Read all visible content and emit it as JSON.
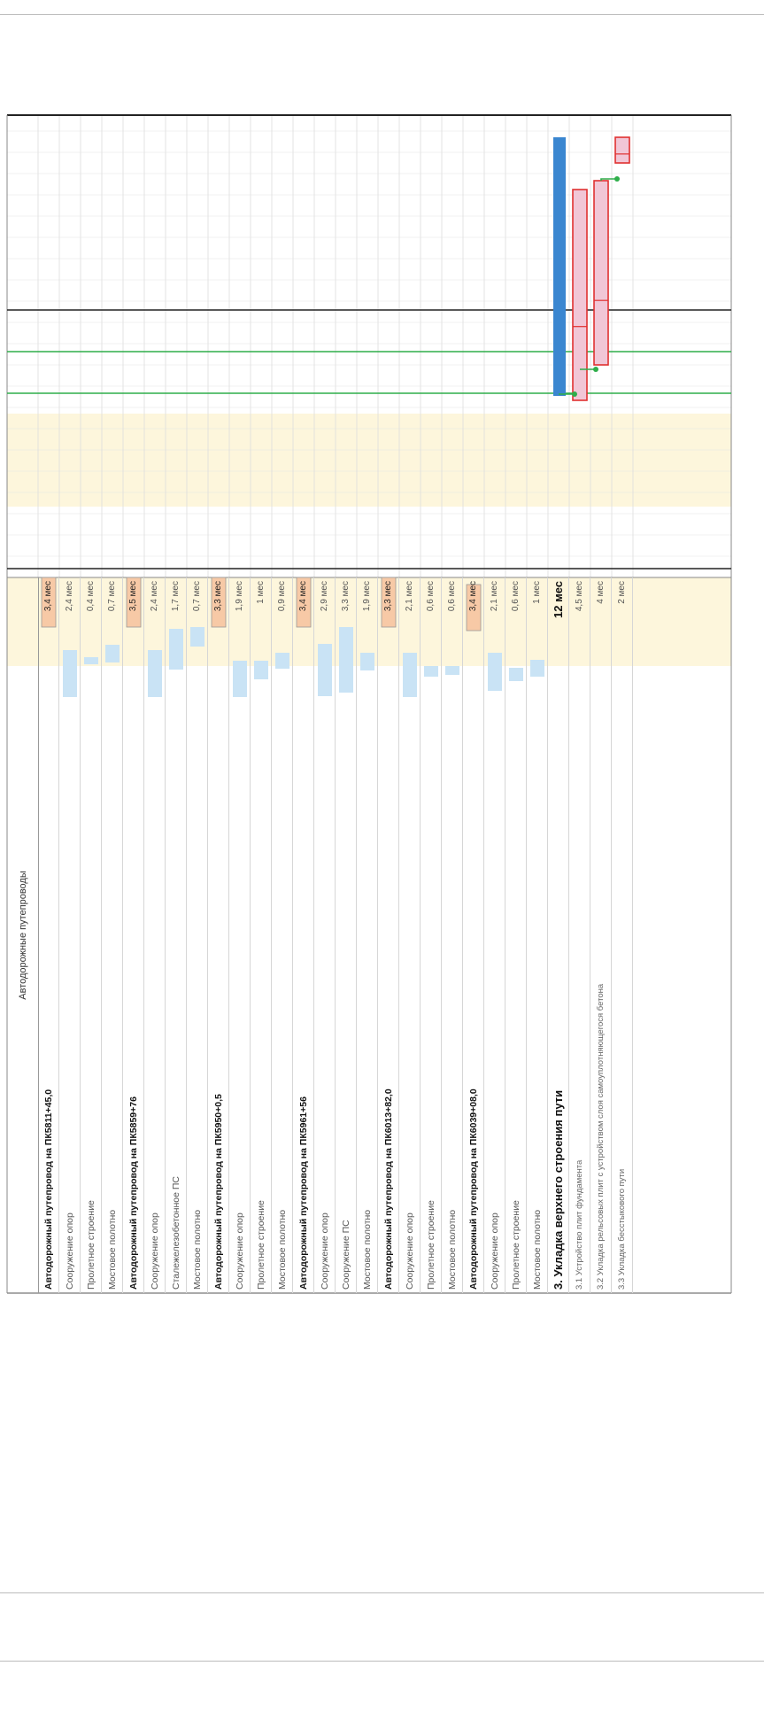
{
  "table": {
    "header": "Автодорожные путепроводы",
    "rows": [
      {
        "name": "Автодорожный путепровод на ПК5811+45,0",
        "dur": "3,4 мес",
        "style": "bold"
      },
      {
        "name": "Сооружение опор",
        "dur": "2,4 мес",
        "style": "normal"
      },
      {
        "name": "Пролетное строение",
        "dur": "0,4 мес",
        "style": "normal"
      },
      {
        "name": "Мостовое полотно",
        "dur": "0,7 мес",
        "style": "normal"
      },
      {
        "name": "Автодорожный путепровод на ПК5859+76",
        "dur": "3,5 мес",
        "style": "bold"
      },
      {
        "name": "Сооружение опор",
        "dur": "2,4 мес",
        "style": "normal"
      },
      {
        "name": "Сталежелезобетонное ПС",
        "dur": "1,7 мес",
        "style": "normal"
      },
      {
        "name": "Мостовое полотно",
        "dur": "0,7 мес",
        "style": "normal"
      },
      {
        "name": "Автодорожный путепровод на ПК5950+0,5",
        "dur": "3,3 мес",
        "style": "bold"
      },
      {
        "name": "Сооружение опор",
        "dur": "1,9 мес",
        "style": "normal"
      },
      {
        "name": "Пролетное строение",
        "dur": "1 мес",
        "style": "normal"
      },
      {
        "name": "Мостовое полотно",
        "dur": "0,9 мес",
        "style": "normal"
      },
      {
        "name": "Автодорожный путепровод на ПК5961+56",
        "dur": "3,4 мес",
        "style": "bold"
      },
      {
        "name": "Сооружение опор",
        "dur": "2,9 мес",
        "style": "normal"
      },
      {
        "name": "Сооружение ПС",
        "dur": "3,3 мес",
        "style": "normal"
      },
      {
        "name": "Мостовое полотно",
        "dur": "1,9 мес",
        "style": "normal"
      },
      {
        "name": "Автодорожный путепровод на ПК6013+82,0",
        "dur": "3,3 мес",
        "style": "bold"
      },
      {
        "name": "Сооружение опор",
        "dur": "2,1 мес",
        "style": "normal"
      },
      {
        "name": "Пролетное строение",
        "dur": "0,6 мес",
        "style": "normal"
      },
      {
        "name": "Мостовое полотно",
        "dur": "0,6 мес",
        "style": "normal"
      },
      {
        "name": "Автодорожный путепровод на ПК6039+08,0",
        "dur": "3,4 мес",
        "style": "bold"
      },
      {
        "name": "Сооружение опор",
        "dur": "2,1 мес",
        "style": "normal"
      },
      {
        "name": "Пролетное строение",
        "dur": "0,6 мес",
        "style": "normal"
      },
      {
        "name": "Мостовое полотно",
        "dur": "1 мес",
        "style": "normal"
      },
      {
        "name": "3. Укладка верхнего строения пути",
        "dur": "12 мес",
        "style": "section"
      },
      {
        "name": "3.1  Устройство плит фундамента",
        "dur": "4,5 мес",
        "style": "sub"
      },
      {
        "name": "3.2  Укладка рельсовых плит с устройством слоя самоуплотняющегося бетона",
        "dur": "4 мес",
        "style": "sub"
      },
      {
        "name": "3.3  Укладка бесстыкового пути",
        "dur": "2 мес",
        "style": "sub"
      }
    ]
  },
  "colors": {
    "summary_bar": "#f7c9a6",
    "summary_border": "#999999",
    "task_bar": "#c9e3f5",
    "section_bar": "#3a86d0",
    "critical_fill": "#f1c6d6",
    "critical_border": "#e03030",
    "link_arrow": "#2eae4a",
    "dark_line": "#222222",
    "highlight": "#fdf6dc"
  }
}
